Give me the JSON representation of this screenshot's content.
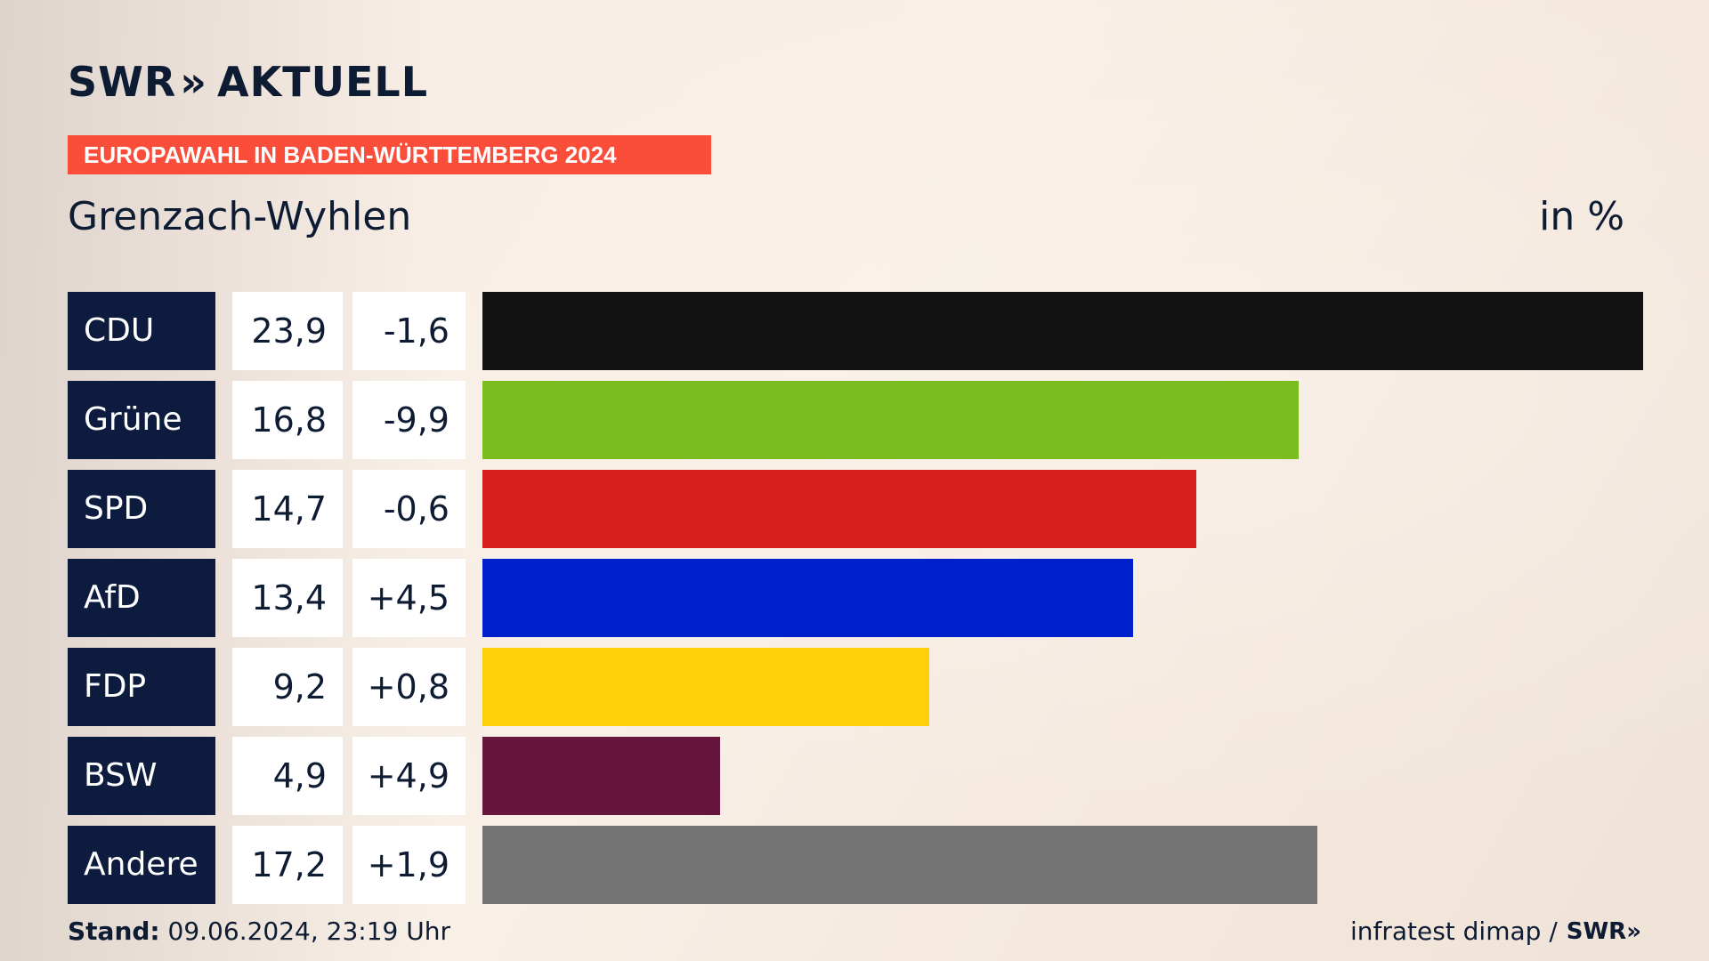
{
  "brand": {
    "name": "SWR",
    "sub": "AKTUELL",
    "chevrons": "»"
  },
  "kicker": "EUROPAWAHL IN BADEN-WÜRTTEMBERG 2024",
  "place": "Grenzach-Wyhlen",
  "unit": "in %",
  "footer": {
    "stand_label": "Stand:",
    "stand_value": "09.06.2024, 23:19 Uhr",
    "source": "infratest dimap /",
    "source_brand": "SWR"
  },
  "chart_data": {
    "type": "bar",
    "orientation": "horizontal",
    "categories": [
      "CDU",
      "Grüne",
      "SPD",
      "AfD",
      "FDP",
      "BSW",
      "Andere"
    ],
    "values": [
      23.9,
      16.8,
      14.7,
      13.4,
      9.2,
      4.9,
      17.2
    ],
    "value_labels": [
      "23,9",
      "16,8",
      "14,7",
      "13,4",
      "9,2",
      "4,9",
      "17,2"
    ],
    "diff_labels": [
      "-1,6",
      "-9,9",
      "-0,6",
      "+4,5",
      "+0,8",
      "+4,9",
      "+1,9"
    ],
    "diffs": [
      -1.6,
      -9.9,
      -0.6,
      4.5,
      0.8,
      4.9,
      1.9
    ],
    "colors": [
      "#121212",
      "#79bd1e",
      "#d81f20",
      "#0020cb",
      "#ffcf0a",
      "#66163d",
      "#737373"
    ],
    "xlim": [
      0,
      23.9
    ],
    "grid": false
  }
}
